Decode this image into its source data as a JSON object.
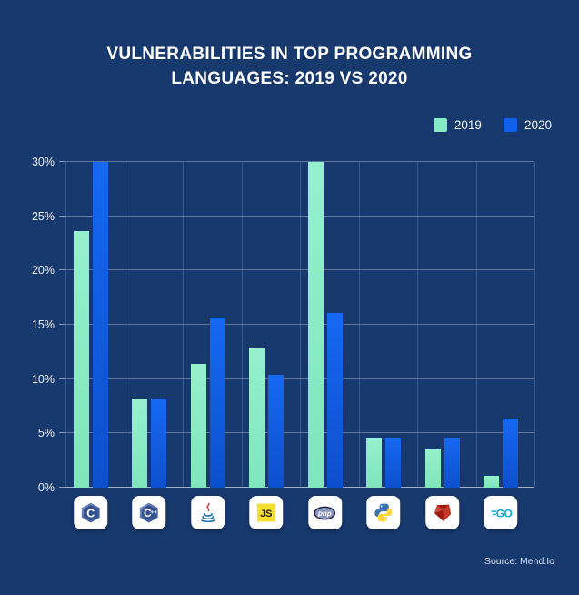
{
  "title": {
    "lines": [
      "VULNERABILITIES IN TOP PROGRAMMING",
      "LANGUAGES: 2019 VS 2020"
    ],
    "full": "VULNERABILITIES IN TOP PROGRAMMING LANGUAGES: 2019 VS 2020"
  },
  "source": "Source: Mend.Io",
  "theme": {
    "background": "#17396D",
    "title_color": "#FFFFFF",
    "hgrid_color": "rgba(255,255,255,0.32)",
    "vgrid_color": "rgba(141,170,220,0.30)",
    "axis_label_color": "#E9EFF8",
    "color_2019": "#86EBC4",
    "color_2020": "#1160EC",
    "bar_2019_gradient": [
      "#95F0CD",
      "#7FE5BC"
    ],
    "bar_2020_gradient": [
      "#1668F2",
      "#0D50CE"
    ],
    "icon_tile_bg": "#FFFFFF"
  },
  "chart_data": {
    "type": "bar",
    "title": "VULNERABILITIES IN TOP PROGRAMMING LANGUAGES: 2019 VS 2020",
    "categories": [
      "C",
      "C++",
      "Java",
      "JavaScript",
      "PHP",
      "Python",
      "Ruby",
      "Go"
    ],
    "category_keys": [
      "c",
      "cpp",
      "java",
      "js",
      "php",
      "python",
      "ruby",
      "go"
    ],
    "category_icons": [
      "c-language-icon",
      "cpp-language-icon",
      "java-language-icon",
      "javascript-language-icon",
      "php-language-icon",
      "python-language-icon",
      "ruby-language-icon",
      "go-language-icon"
    ],
    "series": [
      {
        "name": "2019",
        "color": "#86EBC4",
        "values": [
          23.6,
          8.1,
          11.4,
          12.8,
          30,
          4.6,
          3.5,
          1.1
        ]
      },
      {
        "name": "2020",
        "color": "#1160EC",
        "values": [
          30,
          8.1,
          15.7,
          10.4,
          16.1,
          4.6,
          4.6,
          6.4
        ]
      }
    ],
    "xlabel": "",
    "ylabel": "",
    "y_ticks": [
      "0%",
      "5%",
      "10%",
      "15%",
      "20%",
      "25%",
      "30%"
    ],
    "ylim": [
      0,
      30
    ],
    "grid": true,
    "legend_position": "top-right"
  }
}
